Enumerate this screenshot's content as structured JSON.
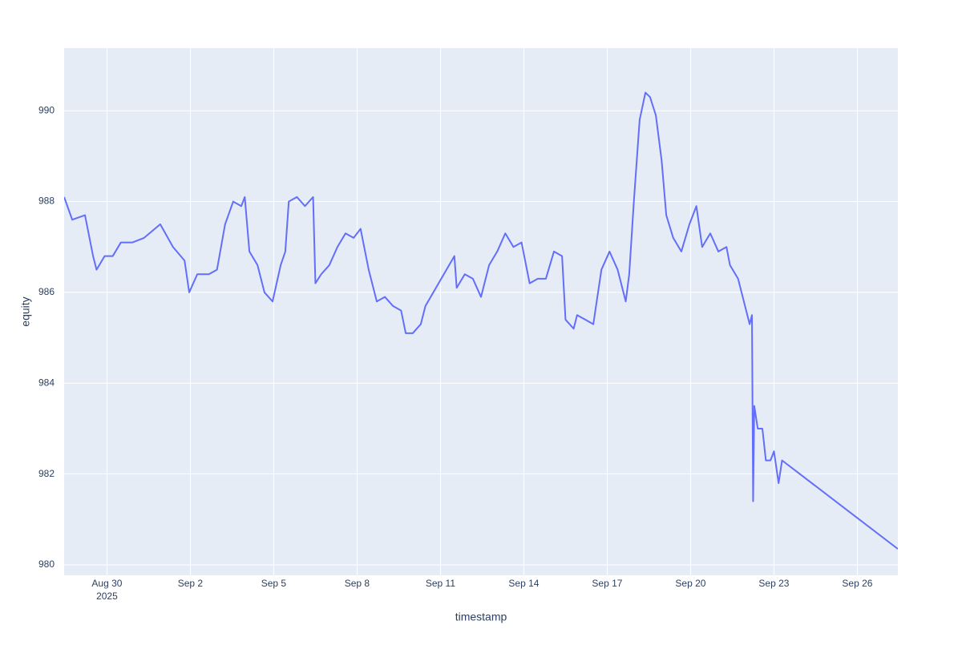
{
  "chart_data": {
    "type": "line",
    "x_label": "timestamp",
    "y_label": "equity",
    "color": "#636efa",
    "grid": true,
    "x": [
      "2025-08-28T11:00",
      "2025-08-28T18:00",
      "2025-08-29T05:00",
      "2025-08-29T12:00",
      "2025-08-29T15:00",
      "2025-08-29T22:00",
      "2025-08-30T05:00",
      "2025-08-30T12:00",
      "2025-08-30T22:00",
      "2025-08-31T08:00",
      "2025-08-31T22:00",
      "2025-09-01T09:00",
      "2025-09-01T19:00",
      "2025-09-01T23:00",
      "2025-09-02T06:00",
      "2025-09-02T16:00",
      "2025-09-02T23:00",
      "2025-09-03T06:00",
      "2025-09-03T13:00",
      "2025-09-03T20:00",
      "2025-09-03T23:00",
      "2025-09-04T03:00",
      "2025-09-04T10:00",
      "2025-09-04T16:00",
      "2025-09-04T23:00",
      "2025-09-05T06:00",
      "2025-09-05T10:00",
      "2025-09-05T13:00",
      "2025-09-05T20:00",
      "2025-09-06T03:00",
      "2025-09-06T10:00",
      "2025-09-06T12:00",
      "2025-09-06T17:00",
      "2025-09-07T00:00",
      "2025-09-07T07:00",
      "2025-09-07T14:00",
      "2025-09-07T21:00",
      "2025-09-08T03:00",
      "2025-09-08T10:00",
      "2025-09-08T17:00",
      "2025-09-09T00:00",
      "2025-09-09T07:00",
      "2025-09-09T14:00",
      "2025-09-09T18:00",
      "2025-09-10T00:00",
      "2025-09-10T07:00",
      "2025-09-10T11:00",
      "2025-09-11T12:00",
      "2025-09-11T14:00",
      "2025-09-11T21:00",
      "2025-09-12T04:00",
      "2025-09-12T11:00",
      "2025-09-12T18:00",
      "2025-09-13T01:00",
      "2025-09-13T08:00",
      "2025-09-13T15:00",
      "2025-09-13T22:00",
      "2025-09-14T05:00",
      "2025-09-14T12:00",
      "2025-09-14T19:00",
      "2025-09-15T02:00",
      "2025-09-15T09:00",
      "2025-09-15T12:00",
      "2025-09-15T19:00",
      "2025-09-15T22:00",
      "2025-09-16T05:00",
      "2025-09-16T12:00",
      "2025-09-16T19:00",
      "2025-09-17T02:00",
      "2025-09-17T09:00",
      "2025-09-17T16:00",
      "2025-09-17T19:00",
      "2025-09-17T23:00",
      "2025-09-18T04:00",
      "2025-09-18T09:00",
      "2025-09-18T13:00",
      "2025-09-18T18:00",
      "2025-09-18T23:00",
      "2025-09-19T03:00",
      "2025-09-19T09:00",
      "2025-09-19T16:00",
      "2025-09-19T23:00",
      "2025-09-20T05:00",
      "2025-09-20T10:00",
      "2025-09-20T17:00",
      "2025-09-21T00:00",
      "2025-09-21T07:00",
      "2025-09-21T10:00",
      "2025-09-21T17:00",
      "2025-09-22T00:00",
      "2025-09-22T03:00",
      "2025-09-22T05:00",
      "2025-09-22T06:00",
      "2025-09-22T07:00",
      "2025-09-22T10:00",
      "2025-09-22T14:00",
      "2025-09-22T17:00",
      "2025-09-22T21:00",
      "2025-09-23T00:00",
      "2025-09-23T04:00",
      "2025-09-23T07:00",
      "2025-09-27T11:00"
    ],
    "values": [
      988.1,
      987.6,
      987.7,
      986.8,
      986.5,
      986.8,
      986.8,
      987.1,
      987.1,
      987.2,
      987.5,
      987.0,
      986.7,
      986.0,
      986.4,
      986.4,
      986.5,
      987.5,
      988.0,
      987.9,
      988.1,
      986.9,
      986.6,
      986.0,
      985.8,
      986.6,
      986.9,
      988.0,
      988.1,
      987.9,
      988.1,
      986.2,
      986.4,
      986.6,
      987.0,
      987.3,
      987.2,
      987.4,
      986.5,
      985.8,
      985.9,
      985.7,
      985.6,
      985.1,
      985.1,
      985.3,
      985.7,
      986.8,
      986.1,
      986.4,
      986.3,
      985.9,
      986.6,
      986.9,
      987.3,
      987.0,
      987.1,
      986.2,
      986.3,
      986.3,
      986.9,
      986.8,
      985.4,
      985.2,
      985.5,
      985.4,
      985.3,
      986.5,
      986.9,
      986.5,
      985.8,
      986.4,
      988.0,
      989.8,
      990.4,
      990.3,
      989.9,
      988.9,
      987.7,
      987.2,
      986.9,
      987.5,
      987.9,
      987.0,
      987.3,
      986.9,
      987.0,
      986.6,
      986.3,
      985.6,
      985.3,
      985.5,
      981.4,
      983.5,
      983.0,
      983.0,
      982.3,
      982.3,
      982.5,
      981.8,
      982.3,
      980.35
    ],
    "xlim": [
      "2025-08-28T11:00",
      "2025-09-27T11:00"
    ],
    "xticks": [
      {
        "value": "2025-08-30",
        "label": "Aug 30"
      },
      {
        "value": "2025-09-02",
        "label": "Sep 2"
      },
      {
        "value": "2025-09-05",
        "label": "Sep 5"
      },
      {
        "value": "2025-09-08",
        "label": "Sep 8"
      },
      {
        "value": "2025-09-11",
        "label": "Sep 11"
      },
      {
        "value": "2025-09-14",
        "label": "Sep 14"
      },
      {
        "value": "2025-09-17",
        "label": "Sep 17"
      },
      {
        "value": "2025-09-20",
        "label": "Sep 20"
      },
      {
        "value": "2025-09-23",
        "label": "Sep 23"
      },
      {
        "value": "2025-09-26",
        "label": "Sep 26"
      }
    ],
    "x_year": "2025",
    "ylim": [
      979.77,
      991.38
    ],
    "yticks": [
      980,
      982,
      984,
      986,
      988,
      990
    ]
  }
}
